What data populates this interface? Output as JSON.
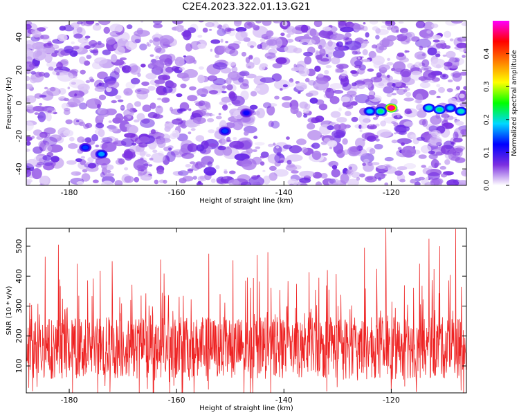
{
  "figure": {
    "title": "C2E4.2023.322.01.13.G21"
  },
  "chart_data": [
    {
      "type": "heatmap",
      "title": "",
      "xlabel": "Height of straight line (km)",
      "ylabel": "Frequency (Hz)",
      "xlim": [
        -188,
        -106
      ],
      "ylim": [
        -50,
        50
      ],
      "xticks": [
        -180,
        -160,
        -140,
        -120
      ],
      "yticks": [
        -40,
        -20,
        0,
        20,
        40
      ],
      "colormap": [
        "#ffffff",
        "#7b2fe0",
        "#0000ff",
        "#00d8ff",
        "#00ff00",
        "#ffff00",
        "#ff7f00",
        "#ff0000",
        "#ff00ff"
      ],
      "colorbar": {
        "label": "Normalized spectral amplitude",
        "range": [
          0,
          0.5
        ],
        "ticks": [
          "0.0",
          "0.1",
          "0.2",
          "0.3",
          "0.4"
        ]
      },
      "hotspots": [
        {
          "x": -120,
          "y": -3,
          "value": 0.48
        },
        {
          "x": -122,
          "y": -5,
          "value": 0.22
        },
        {
          "x": -124,
          "y": -5,
          "value": 0.18
        },
        {
          "x": -113,
          "y": -3,
          "value": 0.2
        },
        {
          "x": -111,
          "y": -4,
          "value": 0.22
        },
        {
          "x": -109,
          "y": -3,
          "value": 0.18
        },
        {
          "x": -107,
          "y": -5,
          "value": 0.2
        },
        {
          "x": -174,
          "y": -31,
          "value": 0.17
        },
        {
          "x": -177,
          "y": -27,
          "value": 0.14
        },
        {
          "x": -151,
          "y": -17,
          "value": 0.14
        },
        {
          "x": -147,
          "y": -6,
          "value": 0.12
        }
      ],
      "grid": false
    },
    {
      "type": "line",
      "title": "",
      "xlabel": "Height of straight line (km)",
      "ylabel": "SNR (10 * v/v)",
      "xlim": [
        -188,
        -106
      ],
      "ylim": [
        10,
        560
      ],
      "xticks": [
        -180,
        -160,
        -140,
        -120
      ],
      "yticks": [
        100,
        200,
        300,
        400,
        500
      ],
      "series": [
        {
          "color": "#ee2222",
          "baseline": 160,
          "band_low": 90,
          "band_high": 250,
          "peaks": [
            {
              "x": -182,
              "y": 505
            },
            {
              "x": -184.5,
              "y": 465
            },
            {
              "x": -172,
              "y": 450
            },
            {
              "x": -163,
              "y": 455
            },
            {
              "x": -154,
              "y": 475
            },
            {
              "x": -145,
              "y": 470
            },
            {
              "x": -143,
              "y": 480
            },
            {
              "x": -125,
              "y": 495
            },
            {
              "x": -121,
              "y": 560
            },
            {
              "x": -113,
              "y": 525
            },
            {
              "x": -108,
              "y": 558
            },
            {
              "x": -111,
              "y": 500
            }
          ],
          "troughs": [
            {
              "x": -186,
              "y": 30
            },
            {
              "x": -132,
              "y": 15
            },
            {
              "x": -120,
              "y": 20
            },
            {
              "x": -107,
              "y": 18
            }
          ]
        }
      ],
      "grid": false
    }
  ]
}
